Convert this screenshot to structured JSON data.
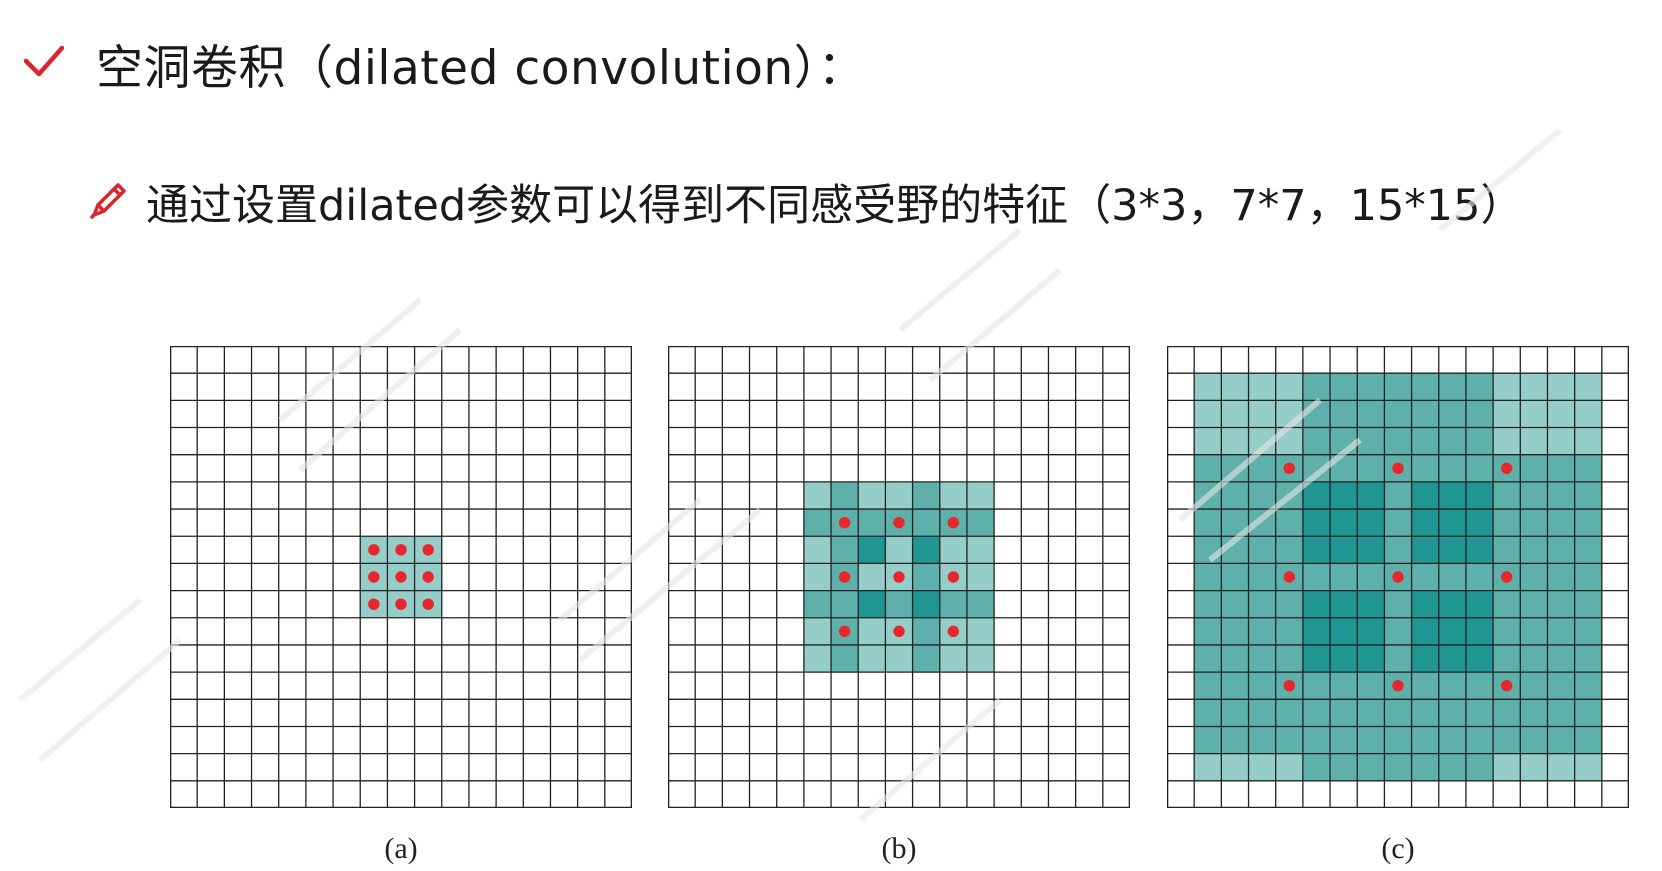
{
  "heading": {
    "text": "空洞卷积（dilated convolution）：",
    "icon": "checkmark-icon",
    "icon_color": "#d9262c"
  },
  "subheading": {
    "text": "通过设置dilated参数可以得到不同感受野的特征（3*3，7*7，15*15）",
    "icon": "pencil-icon",
    "icon_color": "#d9262c"
  },
  "diagram": {
    "grid_cells": 17,
    "colors": {
      "light": "#95cdc9",
      "mid": "#5eb0ab",
      "dark": "#1f9692",
      "dot": "#e8262c",
      "line": "#222222"
    },
    "panels": [
      {
        "label": "(a)",
        "dilation": 1,
        "receptive_field": "3*3",
        "dots": [
          [
            7,
            7
          ],
          [
            8,
            7
          ],
          [
            9,
            7
          ],
          [
            7,
            8
          ],
          [
            8,
            8
          ],
          [
            9,
            8
          ],
          [
            7,
            9
          ],
          [
            8,
            9
          ],
          [
            9,
            9
          ]
        ],
        "fill": [
          {
            "x": 7,
            "y": 7,
            "w": 3,
            "h": 3,
            "shade": "light"
          }
        ]
      },
      {
        "label": "(b)",
        "dilation": 2,
        "receptive_field": "7*7",
        "dots": [
          [
            6,
            6
          ],
          [
            8,
            6
          ],
          [
            10,
            6
          ],
          [
            6,
            8
          ],
          [
            8,
            8
          ],
          [
            10,
            8
          ],
          [
            6,
            10
          ],
          [
            8,
            10
          ],
          [
            10,
            10
          ]
        ],
        "fill": [
          {
            "x": 5,
            "y": 5,
            "w": 7,
            "h": 7,
            "shade": "light"
          },
          {
            "x": 6,
            "y": 5,
            "w": 1,
            "h": 7,
            "shade": "mid"
          },
          {
            "x": 9,
            "y": 5,
            "w": 1,
            "h": 7,
            "shade": "mid"
          },
          {
            "x": 5,
            "y": 6,
            "w": 7,
            "h": 1,
            "shade": "mid"
          },
          {
            "x": 5,
            "y": 9,
            "w": 7,
            "h": 1,
            "shade": "mid"
          },
          {
            "x": 7,
            "y": 7,
            "w": 1,
            "h": 1,
            "shade": "dark"
          },
          {
            "x": 9,
            "y": 7,
            "w": 1,
            "h": 1,
            "shade": "dark"
          },
          {
            "x": 7,
            "y": 9,
            "w": 1,
            "h": 1,
            "shade": "dark"
          },
          {
            "x": 9,
            "y": 9,
            "w": 1,
            "h": 1,
            "shade": "dark"
          }
        ]
      },
      {
        "label": "(c)",
        "dilation": 4,
        "receptive_field": "15*15",
        "dots": [
          [
            4,
            4
          ],
          [
            8,
            4
          ],
          [
            12,
            4
          ],
          [
            4,
            8
          ],
          [
            8,
            8
          ],
          [
            12,
            8
          ],
          [
            4,
            12
          ],
          [
            8,
            12
          ],
          [
            12,
            12
          ]
        ],
        "fill": [
          {
            "x": 1,
            "y": 1,
            "w": 15,
            "h": 15,
            "shade": "light"
          },
          {
            "x": 1,
            "y": 4,
            "w": 15,
            "h": 11,
            "shade": "mid"
          },
          {
            "x": 5,
            "y": 1,
            "w": 7,
            "h": 15,
            "shade": "mid"
          },
          {
            "x": 5,
            "y": 5,
            "w": 3,
            "h": 3,
            "shade": "dark"
          },
          {
            "x": 9,
            "y": 5,
            "w": 3,
            "h": 3,
            "shade": "dark"
          },
          {
            "x": 5,
            "y": 9,
            "w": 3,
            "h": 3,
            "shade": "dark"
          },
          {
            "x": 9,
            "y": 9,
            "w": 3,
            "h": 3,
            "shade": "dark"
          }
        ]
      }
    ]
  }
}
